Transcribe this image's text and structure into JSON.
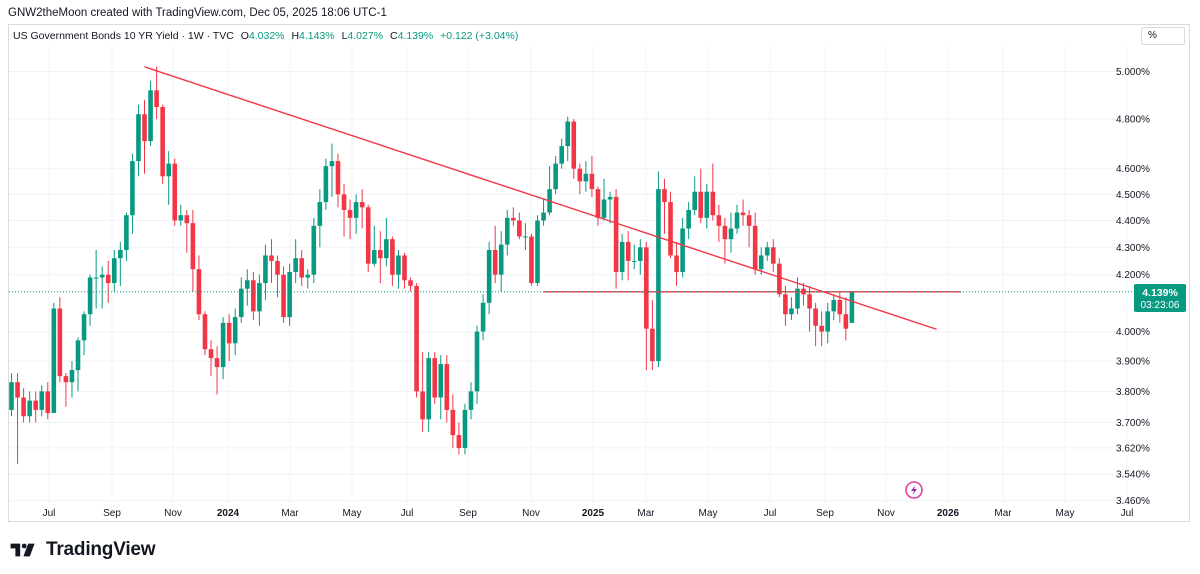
{
  "header": {
    "credit": "GNW2theMoon created with TradingView.com, Dec 05, 2025 18:06 UTC-1"
  },
  "legend": {
    "symbol": "US Government Bonds 10 YR Yield · 1W · TVC",
    "o_label": "O",
    "o_value": "4.032%",
    "h_label": "H",
    "h_value": "4.143%",
    "l_label": "L",
    "l_value": "4.027%",
    "c_label": "C",
    "c_value": "4.139%",
    "change": "+0.122 (+3.04%)"
  },
  "scale_button": "%",
  "price_tag": {
    "price": "4.139%",
    "countdown": "03:23:06"
  },
  "footer": {
    "brand": "TradingView"
  },
  "colors": {
    "up": "#089981",
    "down": "#f23645",
    "trendline": "#f23645",
    "price_line": "#089981",
    "grid": "#f0f3fa",
    "axis_text": "#131722"
  },
  "icons": [
    "tradingview-logo-icon",
    "flash-event-icon"
  ],
  "chart_data": {
    "type": "candlestick",
    "scale": "log",
    "ylim": [
      3.45,
      5.08
    ],
    "y_ticks": [
      {
        "label": "5.000%",
        "value": 5.0
      },
      {
        "label": "4.800%",
        "value": 4.8
      },
      {
        "label": "4.600%",
        "value": 4.6
      },
      {
        "label": "4.500%",
        "value": 4.5
      },
      {
        "label": "4.400%",
        "value": 4.4
      },
      {
        "label": "4.300%",
        "value": 4.3
      },
      {
        "label": "4.200%",
        "value": 4.2
      },
      {
        "label": "4.000%",
        "value": 4.0
      },
      {
        "label": "3.900%",
        "value": 3.9
      },
      {
        "label": "3.800%",
        "value": 3.8
      },
      {
        "label": "3.700%",
        "value": 3.7
      },
      {
        "label": "3.620%",
        "value": 3.62
      },
      {
        "label": "3.540%",
        "value": 3.54
      },
      {
        "label": "3.460%",
        "value": 3.46
      }
    ],
    "x_ticks": [
      {
        "label": "Jul",
        "bold": false
      },
      {
        "label": "Sep",
        "bold": false
      },
      {
        "label": "Nov",
        "bold": false
      },
      {
        "label": "2024",
        "bold": true
      },
      {
        "label": "Mar",
        "bold": false
      },
      {
        "label": "May",
        "bold": false
      },
      {
        "label": "Jul",
        "bold": false
      },
      {
        "label": "Sep",
        "bold": false
      },
      {
        "label": "Nov",
        "bold": false
      },
      {
        "label": "2025",
        "bold": true
      },
      {
        "label": "Mar",
        "bold": false
      },
      {
        "label": "May",
        "bold": false
      },
      {
        "label": "Jul",
        "bold": false
      },
      {
        "label": "Sep",
        "bold": false
      },
      {
        "label": "Nov",
        "bold": false
      },
      {
        "label": "2026",
        "bold": true
      },
      {
        "label": "Mar",
        "bold": false
      },
      {
        "label": "May",
        "bold": false
      },
      {
        "label": "Jul",
        "bold": false
      }
    ],
    "candles": [
      [
        3.74,
        3.83,
        3.86,
        3.72
      ],
      [
        3.83,
        3.78,
        3.86,
        3.57
      ],
      [
        3.78,
        3.72,
        3.81,
        3.7
      ],
      [
        3.72,
        3.77,
        3.8,
        3.7
      ],
      [
        3.77,
        3.74,
        3.8,
        3.7
      ],
      [
        3.74,
        3.8,
        3.82,
        3.72
      ],
      [
        3.8,
        3.73,
        3.83,
        3.71
      ],
      [
        3.73,
        4.08,
        4.1,
        3.73
      ],
      [
        4.08,
        3.85,
        4.12,
        3.83
      ],
      [
        3.85,
        3.83,
        3.86,
        3.75
      ],
      [
        3.83,
        3.87,
        3.9,
        3.78
      ],
      [
        3.87,
        3.97,
        3.98,
        3.8
      ],
      [
        3.97,
        4.06,
        4.07,
        3.92
      ],
      [
        4.06,
        4.19,
        4.2,
        4.02
      ],
      [
        4.19,
        4.19,
        4.29,
        4.08
      ],
      [
        4.19,
        4.2,
        4.23,
        4.08
      ],
      [
        4.2,
        4.17,
        4.25,
        4.1
      ],
      [
        4.17,
        4.26,
        4.29,
        4.14
      ],
      [
        4.26,
        4.29,
        4.32,
        4.16
      ],
      [
        4.29,
        4.42,
        4.43,
        4.25
      ],
      [
        4.42,
        4.63,
        4.66,
        4.35
      ],
      [
        4.63,
        4.82,
        4.86,
        4.57
      ],
      [
        4.82,
        4.71,
        4.88,
        4.58
      ],
      [
        4.71,
        4.92,
        4.96,
        4.69
      ],
      [
        4.92,
        4.85,
        5.02,
        4.8
      ],
      [
        4.85,
        4.57,
        4.86,
        4.54
      ],
      [
        4.57,
        4.62,
        4.67,
        4.46
      ],
      [
        4.62,
        4.4,
        4.64,
        4.38
      ],
      [
        4.4,
        4.42,
        4.46,
        4.38
      ],
      [
        4.42,
        4.39,
        4.44,
        4.28
      ],
      [
        4.39,
        4.22,
        4.44,
        4.14
      ],
      [
        4.22,
        4.06,
        4.27,
        4.04
      ],
      [
        4.06,
        3.94,
        4.07,
        3.92
      ],
      [
        3.94,
        3.91,
        3.97,
        3.85
      ],
      [
        3.91,
        3.88,
        3.95,
        3.79
      ],
      [
        3.88,
        4.03,
        4.05,
        3.84
      ],
      [
        4.03,
        3.96,
        4.06,
        3.9
      ],
      [
        3.96,
        4.05,
        4.08,
        3.92
      ],
      [
        4.05,
        4.15,
        4.19,
        4.03
      ],
      [
        4.15,
        4.18,
        4.22,
        4.09
      ],
      [
        4.18,
        4.07,
        4.21,
        4.04
      ],
      [
        4.07,
        4.17,
        4.2,
        4.02
      ],
      [
        4.17,
        4.27,
        4.31,
        4.11
      ],
      [
        4.27,
        4.25,
        4.33,
        4.17
      ],
      [
        4.25,
        4.2,
        4.27,
        4.12
      ],
      [
        4.2,
        4.05,
        4.23,
        4.03
      ],
      [
        4.05,
        4.21,
        4.24,
        4.02
      ],
      [
        4.21,
        4.26,
        4.33,
        4.17
      ],
      [
        4.26,
        4.19,
        4.29,
        4.16
      ],
      [
        4.19,
        4.2,
        4.22,
        4.15
      ],
      [
        4.2,
        4.38,
        4.41,
        4.17
      ],
      [
        4.38,
        4.47,
        4.52,
        4.3
      ],
      [
        4.47,
        4.61,
        4.64,
        4.44
      ],
      [
        4.61,
        4.63,
        4.7,
        4.49
      ],
      [
        4.63,
        4.5,
        4.66,
        4.45
      ],
      [
        4.5,
        4.44,
        4.54,
        4.34
      ],
      [
        4.44,
        4.41,
        4.48,
        4.33
      ],
      [
        4.41,
        4.47,
        4.5,
        4.35
      ],
      [
        4.47,
        4.45,
        4.52,
        4.37
      ],
      [
        4.45,
        4.24,
        4.46,
        4.21
      ],
      [
        4.24,
        4.29,
        4.38,
        4.23
      ],
      [
        4.29,
        4.26,
        4.36,
        4.17
      ],
      [
        4.26,
        4.33,
        4.41,
        4.23
      ],
      [
        4.33,
        4.2,
        4.34,
        4.16
      ],
      [
        4.2,
        4.27,
        4.29,
        4.15
      ],
      [
        4.27,
        4.18,
        4.28,
        4.15
      ],
      [
        4.18,
        4.16,
        4.19,
        4.14
      ],
      [
        4.16,
        3.8,
        4.17,
        3.78
      ],
      [
        3.8,
        3.71,
        3.93,
        3.67
      ],
      [
        3.71,
        3.91,
        3.93,
        3.67
      ],
      [
        3.91,
        3.78,
        3.93,
        3.76
      ],
      [
        3.78,
        3.89,
        3.92,
        3.71
      ],
      [
        3.89,
        3.74,
        3.92,
        3.7
      ],
      [
        3.74,
        3.66,
        3.79,
        3.62
      ],
      [
        3.66,
        3.62,
        3.7,
        3.6
      ],
      [
        3.62,
        3.74,
        3.76,
        3.6
      ],
      [
        3.74,
        3.8,
        3.83,
        3.71
      ],
      [
        3.8,
        4.0,
        4.02,
        3.76
      ],
      [
        4.0,
        4.1,
        4.13,
        3.97
      ],
      [
        4.1,
        4.29,
        4.32,
        4.06
      ],
      [
        4.29,
        4.2,
        4.38,
        4.17
      ],
      [
        4.2,
        4.31,
        4.36,
        4.14
      ],
      [
        4.31,
        4.41,
        4.44,
        4.27
      ],
      [
        4.41,
        4.4,
        4.45,
        4.38
      ],
      [
        4.4,
        4.34,
        4.43,
        4.33
      ],
      [
        4.34,
        4.34,
        4.39,
        4.29
      ],
      [
        4.34,
        4.17,
        4.35,
        4.16
      ],
      [
        4.17,
        4.4,
        4.42,
        4.16
      ],
      [
        4.4,
        4.43,
        4.48,
        4.38
      ],
      [
        4.43,
        4.52,
        4.61,
        4.42
      ],
      [
        4.52,
        4.62,
        4.65,
        4.5
      ],
      [
        4.62,
        4.69,
        4.72,
        4.6
      ],
      [
        4.69,
        4.79,
        4.81,
        4.63
      ],
      [
        4.79,
        4.6,
        4.8,
        4.56
      ],
      [
        4.6,
        4.55,
        4.62,
        4.5
      ],
      [
        4.55,
        4.58,
        4.63,
        4.51
      ],
      [
        4.58,
        4.52,
        4.65,
        4.49
      ],
      [
        4.52,
        4.41,
        4.53,
        4.38
      ],
      [
        4.41,
        4.48,
        4.56,
        4.4
      ],
      [
        4.48,
        4.49,
        4.51,
        4.39
      ],
      [
        4.49,
        4.21,
        4.52,
        4.15
      ],
      [
        4.21,
        4.32,
        4.35,
        4.18
      ],
      [
        4.32,
        4.25,
        4.36,
        4.18
      ],
      [
        4.25,
        4.25,
        4.31,
        4.22
      ],
      [
        4.25,
        4.3,
        4.33,
        4.2
      ],
      [
        4.3,
        4.01,
        4.32,
        3.87
      ],
      [
        4.01,
        3.9,
        4.11,
        3.87
      ],
      [
        3.9,
        4.52,
        4.59,
        3.88
      ],
      [
        4.52,
        4.47,
        4.56,
        4.35
      ],
      [
        4.47,
        4.27,
        4.51,
        4.26
      ],
      [
        4.27,
        4.21,
        4.32,
        4.16
      ],
      [
        4.21,
        4.37,
        4.41,
        4.19
      ],
      [
        4.37,
        4.44,
        4.47,
        4.33
      ],
      [
        4.44,
        4.51,
        4.57,
        4.42
      ],
      [
        4.51,
        4.41,
        4.6,
        4.39
      ],
      [
        4.41,
        4.51,
        4.54,
        4.37
      ],
      [
        4.51,
        4.42,
        4.62,
        4.4
      ],
      [
        4.42,
        4.38,
        4.46,
        4.32
      ],
      [
        4.38,
        4.33,
        4.41,
        4.24
      ],
      [
        4.33,
        4.37,
        4.43,
        4.28
      ],
      [
        4.37,
        4.43,
        4.46,
        4.35
      ],
      [
        4.43,
        4.42,
        4.48,
        4.38
      ],
      [
        4.42,
        4.38,
        4.44,
        4.3
      ],
      [
        4.38,
        4.22,
        4.43,
        4.2
      ],
      [
        4.22,
        4.27,
        4.3,
        4.2
      ],
      [
        4.27,
        4.3,
        4.32,
        4.25
      ],
      [
        4.3,
        4.24,
        4.33,
        4.21
      ],
      [
        4.24,
        4.13,
        4.26,
        4.12
      ],
      [
        4.13,
        4.06,
        4.16,
        4.02
      ],
      [
        4.06,
        4.08,
        4.12,
        4.04
      ],
      [
        4.08,
        4.15,
        4.19,
        4.06
      ],
      [
        4.15,
        4.13,
        4.17,
        4.09
      ],
      [
        4.13,
        4.08,
        4.16,
        4.0
      ],
      [
        4.08,
        4.02,
        4.1,
        3.95
      ],
      [
        4.02,
        4.0,
        4.07,
        3.95
      ],
      [
        4.0,
        4.07,
        4.1,
        3.96
      ],
      [
        4.07,
        4.11,
        4.13,
        4.04
      ],
      [
        4.11,
        4.06,
        4.14,
        4.03
      ],
      [
        4.06,
        4.01,
        4.12,
        3.97
      ],
      [
        4.03,
        4.14,
        4.14,
        4.03
      ]
    ],
    "trendline": [
      {
        "candle": 22,
        "value": 5.02
      },
      {
        "candle": 153,
        "value": 4.008
      }
    ],
    "horizontal_level": {
      "value": 4.139,
      "from_candle": 88,
      "to_candle": 157
    },
    "last_price": 4.139
  }
}
